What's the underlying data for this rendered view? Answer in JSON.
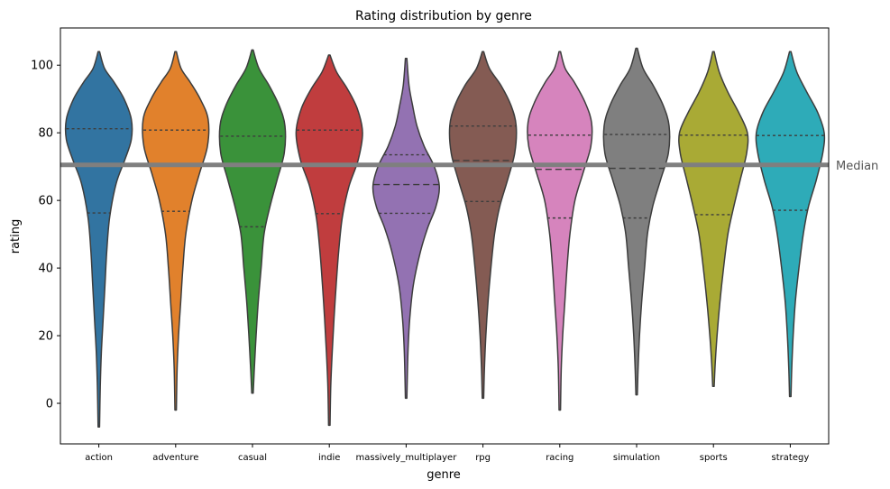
{
  "chart_data": {
    "type": "violin",
    "title": "Rating distribution by genre",
    "xlabel": "genre",
    "ylabel": "rating",
    "ylim": [
      -12,
      111
    ],
    "yticks": [
      0,
      20,
      40,
      60,
      80,
      100
    ],
    "grid": false,
    "legend": "none",
    "reference_line": {
      "label": "Median",
      "value": 70.5,
      "color": "#7f7f7f"
    },
    "categories": [
      "action",
      "adventure",
      "casual",
      "indie",
      "massively_multiplayer",
      "rpg",
      "racing",
      "simulation",
      "sports",
      "strategy"
    ],
    "violins": [
      {
        "name": "action",
        "color": "#3274a1",
        "min": -7,
        "max": 104,
        "q1": 56.3,
        "median": 70.8,
        "q3": 81.2,
        "density": [
          [
            -7,
            0.02
          ],
          [
            5,
            0.04
          ],
          [
            15,
            0.07
          ],
          [
            25,
            0.12
          ],
          [
            35,
            0.17
          ],
          [
            45,
            0.22
          ],
          [
            55,
            0.3
          ],
          [
            65,
            0.48
          ],
          [
            72,
            0.72
          ],
          [
            78,
            0.9
          ],
          [
            84,
            0.9
          ],
          [
            90,
            0.7
          ],
          [
            95,
            0.42
          ],
          [
            99,
            0.16
          ],
          [
            104,
            0.02
          ]
        ]
      },
      {
        "name": "adventure",
        "color": "#e1812c",
        "min": -2,
        "max": 104,
        "q1": 56.8,
        "median": 70.7,
        "q3": 80.8,
        "density": [
          [
            -2,
            0.02
          ],
          [
            10,
            0.04
          ],
          [
            20,
            0.08
          ],
          [
            30,
            0.14
          ],
          [
            40,
            0.2
          ],
          [
            50,
            0.28
          ],
          [
            60,
            0.45
          ],
          [
            68,
            0.66
          ],
          [
            76,
            0.88
          ],
          [
            84,
            0.9
          ],
          [
            90,
            0.68
          ],
          [
            95,
            0.4
          ],
          [
            99,
            0.15
          ],
          [
            104,
            0.02
          ]
        ]
      },
      {
        "name": "casual",
        "color": "#3a923a",
        "min": 3,
        "max": 104.5,
        "q1": 52.2,
        "median": 70.5,
        "q3": 79.0,
        "density": [
          [
            3,
            0.02
          ],
          [
            10,
            0.05
          ],
          [
            20,
            0.1
          ],
          [
            30,
            0.16
          ],
          [
            40,
            0.24
          ],
          [
            50,
            0.32
          ],
          [
            58,
            0.48
          ],
          [
            66,
            0.68
          ],
          [
            74,
            0.88
          ],
          [
            82,
            0.9
          ],
          [
            88,
            0.74
          ],
          [
            94,
            0.46
          ],
          [
            99,
            0.18
          ],
          [
            104.5,
            0.02
          ]
        ]
      },
      {
        "name": "indie",
        "color": "#c03d3e",
        "min": -6.5,
        "max": 103,
        "q1": 56.1,
        "median": 70.7,
        "q3": 80.8,
        "density": [
          [
            -6.5,
            0.02
          ],
          [
            5,
            0.04
          ],
          [
            15,
            0.08
          ],
          [
            25,
            0.13
          ],
          [
            35,
            0.19
          ],
          [
            45,
            0.26
          ],
          [
            55,
            0.36
          ],
          [
            64,
            0.54
          ],
          [
            72,
            0.8
          ],
          [
            80,
            0.92
          ],
          [
            87,
            0.78
          ],
          [
            93,
            0.5
          ],
          [
            98,
            0.2
          ],
          [
            103,
            0.02
          ]
        ]
      },
      {
        "name": "massively_multiplayer",
        "color": "#9372b2",
        "min": 1.5,
        "max": 102,
        "q1": 56.2,
        "median": 64.7,
        "q3": 73.5,
        "density": [
          [
            1.5,
            0.02
          ],
          [
            15,
            0.05
          ],
          [
            25,
            0.1
          ],
          [
            35,
            0.2
          ],
          [
            45,
            0.4
          ],
          [
            52,
            0.6
          ],
          [
            58,
            0.82
          ],
          [
            64,
            0.92
          ],
          [
            70,
            0.78
          ],
          [
            76,
            0.5
          ],
          [
            82,
            0.3
          ],
          [
            88,
            0.18
          ],
          [
            94,
            0.08
          ],
          [
            102,
            0.02
          ]
        ]
      },
      {
        "name": "rpg",
        "color": "#845b53",
        "min": 1.5,
        "max": 104,
        "q1": 59.7,
        "median": 71.8,
        "q3": 82.0,
        "density": [
          [
            1.5,
            0.02
          ],
          [
            10,
            0.04
          ],
          [
            20,
            0.08
          ],
          [
            30,
            0.14
          ],
          [
            40,
            0.22
          ],
          [
            50,
            0.32
          ],
          [
            58,
            0.46
          ],
          [
            66,
            0.68
          ],
          [
            74,
            0.88
          ],
          [
            82,
            0.92
          ],
          [
            88,
            0.78
          ],
          [
            94,
            0.5
          ],
          [
            99,
            0.18
          ],
          [
            104,
            0.02
          ]
        ]
      },
      {
        "name": "racing",
        "color": "#d684bd",
        "min": -2,
        "max": 104,
        "q1": 54.8,
        "median": 69.2,
        "q3": 79.3,
        "density": [
          [
            -2,
            0.02
          ],
          [
            10,
            0.04
          ],
          [
            20,
            0.08
          ],
          [
            30,
            0.14
          ],
          [
            40,
            0.2
          ],
          [
            50,
            0.28
          ],
          [
            60,
            0.42
          ],
          [
            68,
            0.64
          ],
          [
            76,
            0.86
          ],
          [
            83,
            0.88
          ],
          [
            89,
            0.7
          ],
          [
            95,
            0.4
          ],
          [
            99,
            0.15
          ],
          [
            104,
            0.02
          ]
        ]
      },
      {
        "name": "simulation",
        "color": "#7f7f7f",
        "min": 2.5,
        "max": 105,
        "q1": 54.8,
        "median": 69.5,
        "q3": 79.5,
        "density": [
          [
            2.5,
            0.02
          ],
          [
            10,
            0.04
          ],
          [
            20,
            0.08
          ],
          [
            30,
            0.14
          ],
          [
            40,
            0.22
          ],
          [
            50,
            0.3
          ],
          [
            58,
            0.44
          ],
          [
            66,
            0.66
          ],
          [
            74,
            0.88
          ],
          [
            82,
            0.9
          ],
          [
            88,
            0.74
          ],
          [
            94,
            0.46
          ],
          [
            99,
            0.18
          ],
          [
            105,
            0.02
          ]
        ]
      },
      {
        "name": "sports",
        "color": "#a9aa35",
        "min": 5,
        "max": 104,
        "q1": 55.8,
        "median": 70.8,
        "q3": 79.3,
        "density": [
          [
            5,
            0.02
          ],
          [
            12,
            0.05
          ],
          [
            20,
            0.1
          ],
          [
            30,
            0.18
          ],
          [
            40,
            0.28
          ],
          [
            50,
            0.4
          ],
          [
            58,
            0.56
          ],
          [
            66,
            0.74
          ],
          [
            74,
            0.92
          ],
          [
            80,
            0.94
          ],
          [
            86,
            0.7
          ],
          [
            92,
            0.4
          ],
          [
            98,
            0.16
          ],
          [
            104,
            0.02
          ]
        ]
      },
      {
        "name": "strategy",
        "color": "#2eabb8",
        "min": 2,
        "max": 104,
        "q1": 57.1,
        "median": 70.2,
        "q3": 79.2,
        "density": [
          [
            2,
            0.02
          ],
          [
            10,
            0.04
          ],
          [
            20,
            0.08
          ],
          [
            30,
            0.14
          ],
          [
            40,
            0.24
          ],
          [
            50,
            0.36
          ],
          [
            58,
            0.5
          ],
          [
            66,
            0.72
          ],
          [
            74,
            0.9
          ],
          [
            80,
            0.94
          ],
          [
            86,
            0.76
          ],
          [
            92,
            0.46
          ],
          [
            98,
            0.18
          ],
          [
            104,
            0.02
          ]
        ]
      }
    ]
  }
}
